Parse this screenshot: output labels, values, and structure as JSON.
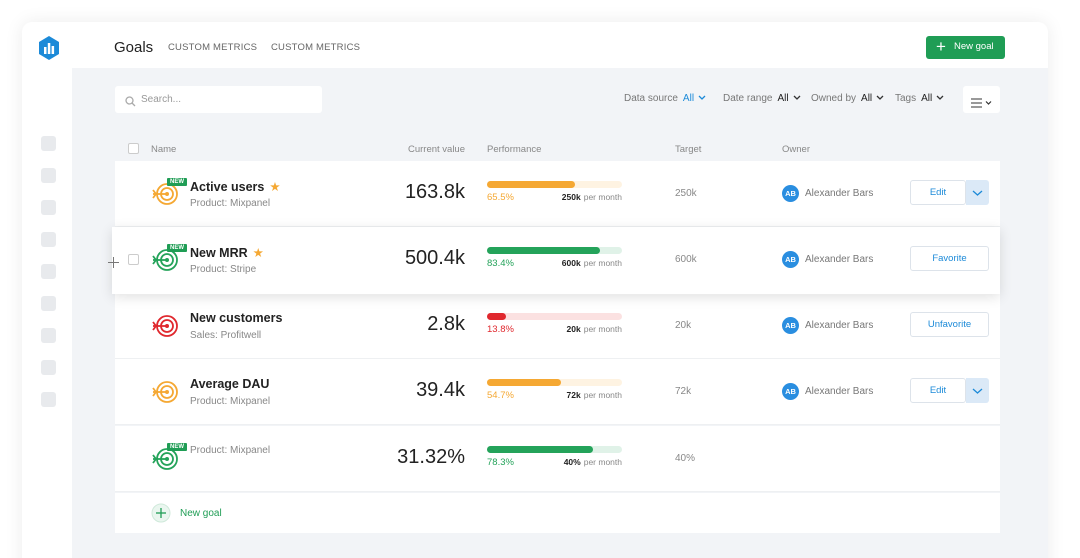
{
  "header": {
    "title": "Goals",
    "tabs": [
      "CUSTOM METRICS",
      "CUSTOM METRICS"
    ],
    "new_goal_button": "New goal"
  },
  "toolbar": {
    "search_placeholder": "Search...",
    "filters": [
      {
        "label": "Data source",
        "value": "All"
      },
      {
        "label": "Date range",
        "value": "All"
      },
      {
        "label": "Owned by",
        "value": "All"
      },
      {
        "label": "Tags",
        "value": "All"
      }
    ]
  },
  "table": {
    "columns": [
      "Name",
      "Current value",
      "Performance",
      "Target",
      "Owner"
    ],
    "rows": [
      {
        "name": "Active users",
        "badge": "NEW",
        "starred": true,
        "source": "Product: Mixpanel",
        "current_value": "163.8k",
        "color": "#f5a833",
        "performance": {
          "value": 65.5,
          "label": "65.5%"
        },
        "period_target": "250k",
        "period_unit": "per month",
        "target": "250k",
        "owner_initials": "AB",
        "owner": "Alexander Bars",
        "action": "Edit",
        "dropdown": true
      },
      {
        "name": "New MRR",
        "badge": "NEW",
        "starred": true,
        "source": "Product: Stripe",
        "current_value": "500.4k",
        "color": "#24a35a",
        "performance": {
          "value": 83.4,
          "label": "83.4%"
        },
        "period_target": "600k",
        "period_unit": "per month",
        "target": "600k",
        "owner_initials": "AB",
        "owner": "Alexander Bars",
        "action": "Favorite",
        "dropdown": false
      },
      {
        "name": "New customers",
        "starred": false,
        "source": "Sales: Profitwell",
        "current_value": "2.8k",
        "color": "#e0282e",
        "performance": {
          "value": 13.8,
          "label": "13.8%"
        },
        "period_target": "20k",
        "period_unit": "per month",
        "target": "20k",
        "owner_initials": "AB",
        "owner": "Alexander Bars",
        "action": "Unfavorite",
        "dropdown": false
      },
      {
        "name": "Average DAU",
        "starred": false,
        "source": "Product: Mixpanel",
        "current_value": "39.4k",
        "color": "#f5a833",
        "performance": {
          "value": 54.7,
          "label": "54.7%"
        },
        "period_target": "72k",
        "period_unit": "per month",
        "target": "72k",
        "owner_initials": "AB",
        "owner": "Alexander Bars",
        "action": "Edit",
        "dropdown": true
      },
      {
        "badge": "NEW",
        "starred": false,
        "source": "Product: Mixpanel",
        "current_value": "31.32%",
        "color": "#24a35a",
        "performance": {
          "value": 78.3,
          "label": "78.3%"
        },
        "period_target": "40%",
        "period_unit": "per month",
        "target": "40%"
      }
    ],
    "new_goal": "New goal"
  }
}
